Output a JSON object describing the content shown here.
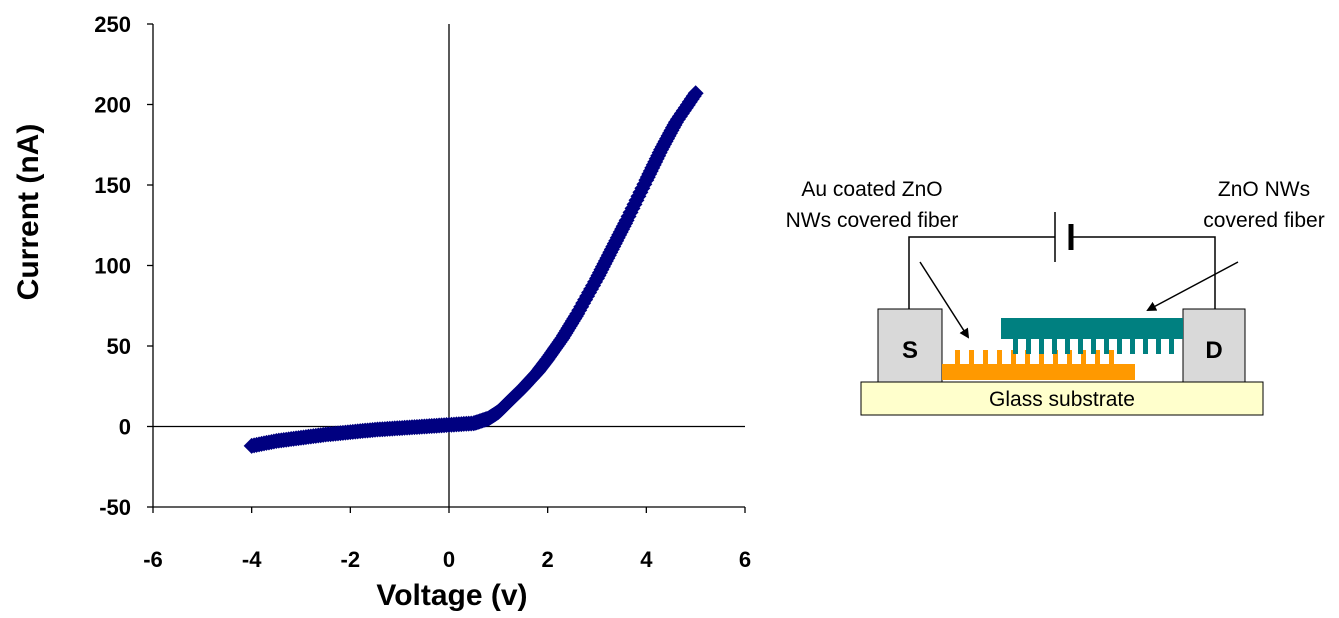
{
  "chart_data": {
    "type": "scatter",
    "xlabel": "Voltage (v)",
    "ylabel": "Current (nA)",
    "xlim": [
      -6,
      6
    ],
    "ylim": [
      -50,
      250
    ],
    "xticks": [
      "-6",
      "-4",
      "-2",
      "0",
      "2",
      "4",
      "6"
    ],
    "yticks": [
      "250",
      "200",
      "150",
      "100",
      "50",
      "0",
      "-50"
    ],
    "grid": false,
    "marker": "diamond",
    "color": "#000080",
    "series": [
      {
        "x": [
          -4.0,
          -3.5,
          -3.0,
          -2.5,
          -2.0,
          -1.5,
          -1.0,
          -0.5,
          0.0,
          0.5,
          0.8,
          1.0,
          1.2,
          1.5,
          1.8,
          2.0,
          2.3,
          2.6,
          3.0,
          3.3,
          3.6,
          4.0,
          4.3,
          4.6,
          5.0
        ],
        "y": [
          -12,
          -9,
          -7,
          -5,
          -3.5,
          -2,
          -1,
          0,
          1,
          2,
          5,
          9,
          15,
          24,
          34,
          42,
          55,
          70,
          92,
          110,
          128,
          153,
          172,
          189,
          207
        ]
      }
    ]
  },
  "diagram": {
    "label_left_line1": "Au coated ZnO",
    "label_left_line2": "NWs covered fiber",
    "label_right_line1": "ZnO NWs",
    "label_right_line2": "covered fiber",
    "electrode_source": "S",
    "electrode_drain": "D",
    "substrate_label": "Glass substrate",
    "colors": {
      "substrate": "#ffffcc",
      "electrode": "#d9d9d9",
      "au_fiber": "#ff9900",
      "zno_fiber": "#008080"
    }
  }
}
